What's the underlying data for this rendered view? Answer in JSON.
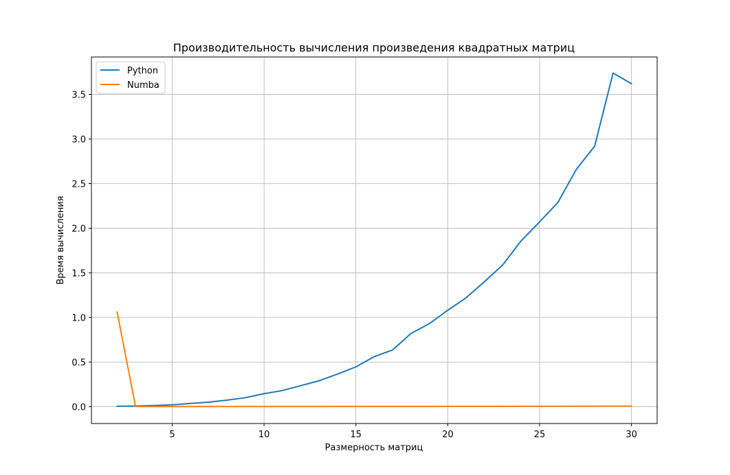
{
  "chart_data": {
    "type": "line",
    "title": "Производительность вычисления произведения квадратных матриц",
    "xlabel": "Размерность матриц",
    "ylabel": "Время вычисления",
    "xlim": [
      0.6,
      31.4
    ],
    "ylim": [
      -0.19,
      3.92
    ],
    "xticks": [
      5,
      10,
      15,
      20,
      25,
      30
    ],
    "xtick_labels": [
      "5",
      "10",
      "15",
      "20",
      "25",
      "30"
    ],
    "yticks": [
      0.0,
      0.5,
      1.0,
      1.5,
      2.0,
      2.5,
      3.0,
      3.5
    ],
    "ytick_labels": [
      "0.0",
      "0.5",
      "1.0",
      "1.5",
      "2.0",
      "2.5",
      "3.0",
      "3.5"
    ],
    "grid": true,
    "legend_position": "upper-left",
    "x": [
      2,
      3,
      4,
      5,
      6,
      7,
      8,
      9,
      10,
      11,
      12,
      13,
      14,
      15,
      16,
      17,
      18,
      19,
      20,
      21,
      22,
      23,
      24,
      25,
      26,
      27,
      28,
      29,
      30
    ],
    "series": [
      {
        "name": "Python",
        "color": "#1f77b4",
        "values": [
          0.003,
          0.006,
          0.012,
          0.02,
          0.035,
          0.05,
          0.073,
          0.1,
          0.145,
          0.18,
          0.235,
          0.29,
          0.365,
          0.445,
          0.56,
          0.635,
          0.82,
          0.93,
          1.08,
          1.22,
          1.4,
          1.59,
          1.86,
          2.07,
          2.29,
          2.66,
          2.92,
          3.74,
          3.62
        ]
      },
      {
        "name": "Numba",
        "color": "#ff7f0e",
        "values": [
          1.06,
          0.0,
          0.0,
          0.0,
          0.0,
          0.0,
          0.0,
          0.0,
          0.0,
          0.0,
          0.0,
          0.0,
          0.001,
          0.001,
          0.001,
          0.001,
          0.001,
          0.001,
          0.002,
          0.002,
          0.002,
          0.002,
          0.003,
          0.003,
          0.003,
          0.004,
          0.004,
          0.005,
          0.005
        ]
      }
    ]
  }
}
